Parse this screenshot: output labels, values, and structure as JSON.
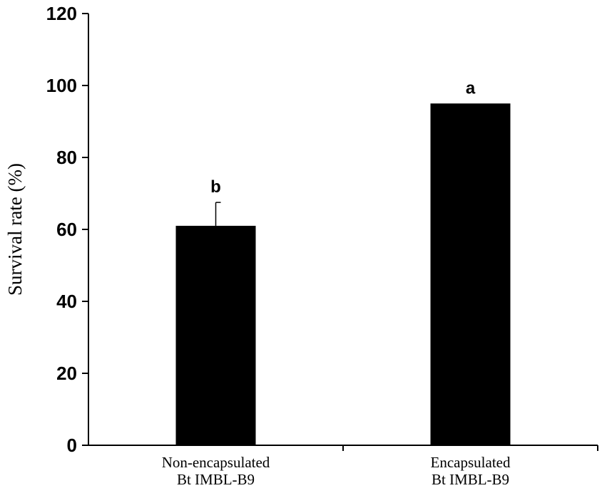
{
  "chart_data": {
    "type": "bar",
    "title": "",
    "xlabel": "",
    "ylabel": "Survival rate (%)",
    "ylim": [
      0,
      120
    ],
    "yticks": [
      0,
      20,
      40,
      60,
      80,
      100,
      120
    ],
    "categories": [
      [
        "Non-encapsulated",
        "Bt IMBL-B9"
      ],
      [
        "Encapsulated",
        "Bt IMBL-B9"
      ]
    ],
    "values": [
      61,
      95
    ],
    "error_plus": [
      6.5,
      0
    ],
    "significance_labels": [
      "b",
      "a"
    ],
    "bar_color": "#000000",
    "grid": false,
    "legend": "none"
  }
}
